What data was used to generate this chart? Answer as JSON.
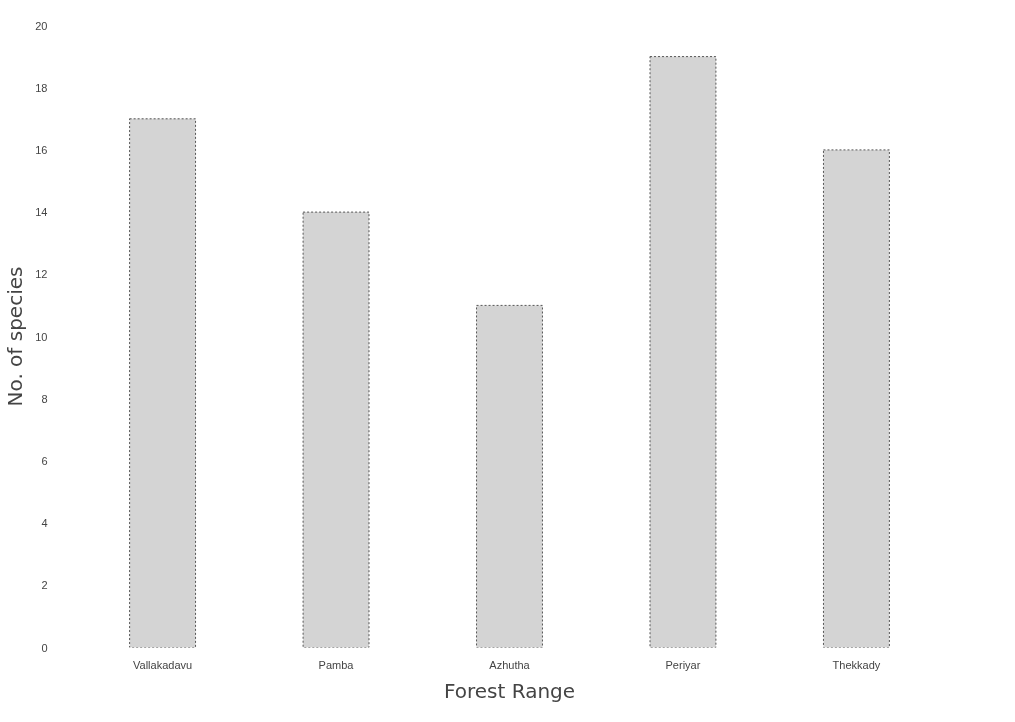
{
  "chart_data": {
    "type": "bar",
    "xlabel": "Forest Range",
    "ylabel": "No. of species",
    "categories": [
      "Vallakadavu",
      "Pamba",
      "Azhutha",
      "Periyar",
      "Thekkady"
    ],
    "values": [
      17,
      14,
      11,
      19,
      16
    ],
    "color": "#d4d4d4",
    "ylim": [
      0,
      20
    ],
    "yticks": [
      0,
      2,
      4,
      6,
      8,
      10,
      12,
      14,
      16,
      18,
      20
    ],
    "grid": false
  }
}
